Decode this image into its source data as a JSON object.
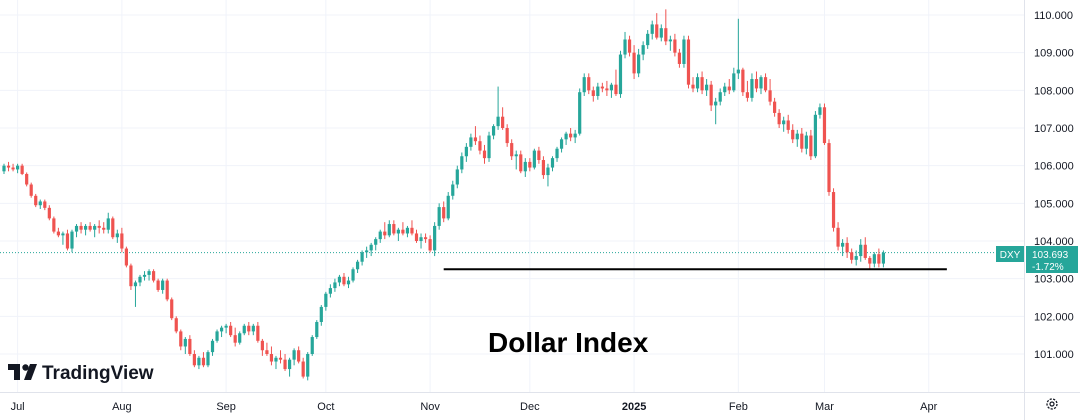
{
  "chart_data": {
    "type": "candlestick",
    "annotation": "Dollar Index",
    "watermark": "TradingView",
    "symbol": "DXY",
    "last_price": "103.693",
    "change_pct": "-1.72%",
    "ylim": [
      100.5,
      110.25
    ],
    "y_ticks": [
      "110.000",
      "109.000",
      "108.000",
      "107.000",
      "106.000",
      "105.000",
      "104.000",
      "103.000",
      "102.000",
      "101.000"
    ],
    "x_ticks": [
      {
        "label": "Jul",
        "index": 3,
        "bold": false
      },
      {
        "label": "Aug",
        "index": 26,
        "bold": false
      },
      {
        "label": "Sep",
        "index": 49,
        "bold": false
      },
      {
        "label": "Oct",
        "index": 71,
        "bold": false
      },
      {
        "label": "Nov",
        "index": 94,
        "bold": false
      },
      {
        "label": "Dec",
        "index": 116,
        "bold": false
      },
      {
        "label": "2025",
        "index": 139,
        "bold": true
      },
      {
        "label": "Feb",
        "index": 162,
        "bold": false
      },
      {
        "label": "Mar",
        "index": 181,
        "bold": false
      },
      {
        "label": "Apr",
        "index": 204,
        "bold": false
      }
    ],
    "support_level": {
      "value": 103.25,
      "from_index": 97,
      "to_index": 208
    },
    "colors": {
      "up": "#26a69a",
      "down": "#ef5350",
      "grid": "#f0f3fa",
      "support": "#000000",
      "tag": "#26a69a"
    },
    "candles": [
      [
        105.85,
        106.05,
        105.78,
        106.0
      ],
      [
        106.0,
        106.1,
        105.85,
        105.95
      ],
      [
        105.95,
        106.05,
        105.85,
        105.9
      ],
      [
        105.9,
        106.05,
        105.8,
        106.0
      ],
      [
        106.0,
        106.05,
        105.75,
        105.78
      ],
      [
        105.78,
        105.82,
        105.45,
        105.5
      ],
      [
        105.5,
        105.55,
        105.15,
        105.2
      ],
      [
        105.2,
        105.25,
        104.9,
        104.95
      ],
      [
        104.95,
        105.1,
        104.85,
        105.05
      ],
      [
        105.05,
        105.1,
        104.82,
        104.88
      ],
      [
        104.88,
        104.95,
        104.55,
        104.6
      ],
      [
        104.6,
        104.65,
        104.2,
        104.25
      ],
      [
        104.25,
        104.35,
        104.1,
        104.15
      ],
      [
        104.15,
        104.25,
        103.9,
        104.2
      ],
      [
        104.2,
        104.3,
        103.75,
        103.8
      ],
      [
        103.8,
        104.3,
        103.7,
        104.25
      ],
      [
        104.25,
        104.45,
        104.1,
        104.4
      ],
      [
        104.4,
        104.5,
        104.2,
        104.3
      ],
      [
        104.3,
        104.45,
        104.15,
        104.4
      ],
      [
        104.4,
        104.5,
        104.25,
        104.3
      ],
      [
        104.3,
        104.45,
        104.1,
        104.4
      ],
      [
        104.4,
        104.55,
        104.2,
        104.35
      ],
      [
        104.35,
        104.5,
        104.2,
        104.3
      ],
      [
        104.3,
        104.75,
        104.2,
        104.6
      ],
      [
        104.6,
        104.65,
        104.05,
        104.1
      ],
      [
        104.1,
        104.3,
        103.95,
        104.2
      ],
      [
        104.2,
        104.35,
        103.7,
        103.8
      ],
      [
        103.8,
        103.85,
        103.3,
        103.35
      ],
      [
        103.35,
        103.4,
        102.7,
        102.8
      ],
      [
        102.8,
        102.95,
        102.25,
        102.9
      ],
      [
        102.9,
        103.1,
        102.8,
        103.05
      ],
      [
        103.05,
        103.2,
        102.95,
        103.1
      ],
      [
        103.1,
        103.25,
        102.95,
        103.2
      ],
      [
        103.2,
        103.25,
        102.9,
        102.95
      ],
      [
        102.95,
        103.0,
        102.65,
        102.7
      ],
      [
        102.7,
        103.0,
        102.6,
        102.95
      ],
      [
        102.95,
        103.0,
        102.4,
        102.45
      ],
      [
        102.45,
        102.5,
        101.9,
        101.95
      ],
      [
        101.95,
        102.0,
        101.55,
        101.6
      ],
      [
        101.6,
        101.65,
        101.1,
        101.2
      ],
      [
        101.2,
        101.45,
        101.0,
        101.4
      ],
      [
        101.4,
        101.5,
        100.95,
        101.0
      ],
      [
        101.0,
        101.1,
        100.65,
        100.7
      ],
      [
        100.7,
        100.95,
        100.6,
        100.9
      ],
      [
        100.9,
        101.05,
        100.65,
        100.7
      ],
      [
        100.7,
        101.1,
        100.65,
        101.05
      ],
      [
        101.05,
        101.4,
        100.95,
        101.35
      ],
      [
        101.35,
        101.65,
        101.3,
        101.6
      ],
      [
        101.6,
        101.75,
        101.45,
        101.7
      ],
      [
        101.7,
        101.8,
        101.55,
        101.75
      ],
      [
        101.75,
        101.85,
        101.45,
        101.5
      ],
      [
        101.5,
        101.7,
        101.2,
        101.3
      ],
      [
        101.3,
        101.6,
        101.25,
        101.55
      ],
      [
        101.55,
        101.8,
        101.5,
        101.75
      ],
      [
        101.75,
        101.85,
        101.5,
        101.6
      ],
      [
        101.6,
        101.8,
        101.5,
        101.75
      ],
      [
        101.75,
        101.85,
        101.3,
        101.35
      ],
      [
        101.35,
        101.4,
        100.95,
        101.1
      ],
      [
        101.1,
        101.3,
        100.95,
        101.0
      ],
      [
        101.0,
        101.2,
        100.7,
        100.8
      ],
      [
        100.8,
        100.95,
        100.6,
        100.9
      ],
      [
        100.9,
        101.1,
        100.75,
        100.85
      ],
      [
        100.85,
        101.0,
        100.55,
        100.6
      ],
      [
        100.6,
        100.9,
        100.4,
        100.85
      ],
      [
        100.85,
        101.15,
        100.7,
        101.1
      ],
      [
        101.1,
        101.2,
        100.75,
        100.8
      ],
      [
        100.8,
        100.9,
        100.35,
        100.4
      ],
      [
        100.4,
        101.05,
        100.3,
        101.0
      ],
      [
        101.0,
        101.5,
        100.95,
        101.45
      ],
      [
        101.45,
        101.9,
        101.4,
        101.85
      ],
      [
        101.85,
        102.3,
        101.75,
        102.25
      ],
      [
        102.25,
        102.65,
        102.15,
        102.6
      ],
      [
        102.6,
        102.85,
        102.5,
        102.75
      ],
      [
        102.75,
        103.0,
        102.65,
        102.9
      ],
      [
        102.9,
        103.1,
        102.8,
        103.05
      ],
      [
        103.05,
        103.15,
        102.8,
        102.85
      ],
      [
        102.85,
        103.05,
        102.75,
        102.95
      ],
      [
        102.95,
        103.3,
        102.9,
        103.25
      ],
      [
        103.25,
        103.5,
        103.15,
        103.45
      ],
      [
        103.45,
        103.75,
        103.35,
        103.7
      ],
      [
        103.7,
        103.85,
        103.55,
        103.75
      ],
      [
        103.75,
        103.95,
        103.6,
        103.9
      ],
      [
        103.9,
        104.1,
        103.75,
        104.05
      ],
      [
        104.05,
        104.3,
        103.95,
        104.25
      ],
      [
        104.25,
        104.5,
        104.05,
        104.15
      ],
      [
        104.15,
        104.55,
        104.1,
        104.45
      ],
      [
        104.45,
        104.55,
        104.15,
        104.2
      ],
      [
        104.2,
        104.35,
        104.0,
        104.3
      ],
      [
        104.3,
        104.5,
        104.15,
        104.2
      ],
      [
        104.2,
        104.4,
        104.1,
        104.35
      ],
      [
        104.35,
        104.55,
        104.15,
        104.2
      ],
      [
        104.2,
        104.3,
        103.95,
        104.0
      ],
      [
        104.0,
        104.2,
        103.8,
        104.1
      ],
      [
        104.1,
        104.2,
        103.95,
        104.05
      ],
      [
        104.05,
        104.15,
        103.7,
        103.75
      ],
      [
        103.75,
        104.5,
        103.6,
        104.4
      ],
      [
        104.4,
        105.0,
        104.3,
        104.9
      ],
      [
        104.9,
        105.05,
        104.5,
        104.6
      ],
      [
        104.6,
        105.3,
        104.55,
        105.2
      ],
      [
        105.2,
        105.6,
        105.1,
        105.5
      ],
      [
        105.5,
        106.0,
        105.4,
        105.9
      ],
      [
        105.9,
        106.35,
        105.8,
        106.25
      ],
      [
        106.25,
        106.6,
        106.1,
        106.5
      ],
      [
        106.5,
        106.85,
        106.4,
        106.75
      ],
      [
        106.75,
        107.05,
        106.55,
        106.65
      ],
      [
        106.65,
        106.8,
        106.3,
        106.4
      ],
      [
        106.4,
        106.55,
        106.05,
        106.2
      ],
      [
        106.2,
        106.9,
        106.1,
        106.8
      ],
      [
        106.8,
        107.1,
        106.7,
        107.05
      ],
      [
        107.05,
        108.1,
        106.95,
        107.3
      ],
      [
        107.3,
        107.55,
        106.95,
        107.0
      ],
      [
        107.0,
        107.1,
        106.5,
        106.6
      ],
      [
        106.6,
        106.7,
        106.15,
        106.25
      ],
      [
        106.25,
        106.4,
        105.9,
        106.3
      ],
      [
        106.3,
        106.4,
        105.8,
        105.85
      ],
      [
        105.85,
        106.2,
        105.7,
        106.1
      ],
      [
        106.1,
        106.2,
        105.85,
        105.95
      ],
      [
        105.95,
        106.45,
        105.9,
        106.4
      ],
      [
        106.4,
        106.5,
        106.05,
        106.15
      ],
      [
        106.15,
        106.25,
        105.65,
        105.75
      ],
      [
        105.75,
        106.05,
        105.45,
        105.95
      ],
      [
        105.95,
        106.25,
        105.85,
        106.2
      ],
      [
        106.2,
        106.5,
        106.1,
        106.45
      ],
      [
        106.45,
        106.75,
        106.35,
        106.7
      ],
      [
        106.7,
        106.9,
        106.55,
        106.85
      ],
      [
        106.85,
        107.0,
        106.65,
        106.75
      ],
      [
        106.75,
        106.95,
        106.6,
        106.85
      ],
      [
        106.85,
        108.05,
        106.8,
        107.95
      ],
      [
        107.95,
        108.45,
        107.85,
        108.35
      ],
      [
        108.35,
        108.45,
        107.9,
        108.0
      ],
      [
        108.0,
        108.1,
        107.7,
        107.85
      ],
      [
        107.85,
        108.2,
        107.75,
        108.1
      ],
      [
        108.1,
        108.2,
        107.95,
        108.05
      ],
      [
        108.05,
        108.25,
        107.85,
        108.0
      ],
      [
        108.0,
        108.2,
        107.8,
        108.15
      ],
      [
        108.15,
        108.55,
        107.85,
        107.9
      ],
      [
        107.9,
        109.05,
        107.8,
        108.95
      ],
      [
        108.95,
        109.55,
        108.85,
        109.35
      ],
      [
        109.35,
        109.45,
        108.9,
        109.0
      ],
      [
        109.0,
        109.2,
        108.3,
        108.45
      ],
      [
        108.45,
        109.1,
        108.35,
        108.95
      ],
      [
        108.95,
        109.3,
        108.8,
        109.2
      ],
      [
        109.2,
        109.6,
        109.1,
        109.5
      ],
      [
        109.5,
        109.85,
        109.35,
        109.75
      ],
      [
        109.75,
        110.05,
        109.35,
        109.4
      ],
      [
        109.4,
        109.75,
        109.3,
        109.65
      ],
      [
        109.65,
        110.15,
        109.2,
        109.3
      ],
      [
        109.3,
        109.45,
        109.05,
        109.35
      ],
      [
        109.35,
        109.5,
        108.9,
        109.0
      ],
      [
        109.0,
        109.1,
        108.6,
        108.7
      ],
      [
        108.7,
        109.45,
        108.6,
        109.35
      ],
      [
        109.35,
        109.45,
        108.05,
        108.15
      ],
      [
        108.15,
        108.35,
        107.95,
        108.05
      ],
      [
        108.05,
        108.45,
        107.95,
        108.35
      ],
      [
        108.35,
        108.5,
        107.9,
        108.0
      ],
      [
        108.0,
        108.3,
        107.85,
        108.15
      ],
      [
        108.15,
        108.25,
        107.45,
        107.6
      ],
      [
        107.6,
        107.8,
        107.1,
        107.7
      ],
      [
        107.7,
        108.05,
        107.6,
        107.95
      ],
      [
        107.95,
        108.2,
        107.85,
        108.1
      ],
      [
        108.1,
        108.3,
        107.9,
        108.0
      ],
      [
        108.0,
        108.6,
        107.95,
        108.45
      ],
      [
        108.45,
        109.9,
        108.3,
        108.55
      ],
      [
        108.55,
        108.6,
        107.85,
        107.95
      ],
      [
        107.95,
        108.25,
        107.7,
        107.8
      ],
      [
        107.8,
        108.45,
        107.7,
        108.3
      ],
      [
        108.3,
        108.5,
        107.95,
        108.05
      ],
      [
        108.05,
        108.4,
        107.9,
        108.35
      ],
      [
        108.35,
        108.45,
        107.95,
        108.0
      ],
      [
        108.0,
        108.3,
        107.6,
        107.7
      ],
      [
        107.7,
        107.8,
        107.3,
        107.4
      ],
      [
        107.4,
        107.5,
        107.0,
        107.1
      ],
      [
        107.1,
        107.3,
        106.9,
        107.2
      ],
      [
        107.2,
        107.35,
        106.85,
        106.95
      ],
      [
        106.95,
        107.1,
        106.6,
        106.7
      ],
      [
        106.7,
        106.95,
        106.5,
        106.85
      ],
      [
        106.85,
        107.0,
        106.35,
        106.45
      ],
      [
        106.45,
        106.9,
        106.3,
        106.8
      ],
      [
        106.8,
        106.95,
        106.15,
        106.25
      ],
      [
        106.25,
        107.45,
        106.2,
        107.35
      ],
      [
        107.35,
        107.65,
        107.25,
        107.55
      ],
      [
        107.55,
        107.65,
        106.55,
        106.6
      ],
      [
        106.6,
        106.7,
        105.2,
        105.3
      ],
      [
        105.3,
        105.4,
        104.25,
        104.35
      ],
      [
        104.35,
        104.5,
        103.75,
        103.85
      ],
      [
        103.85,
        104.05,
        103.6,
        103.95
      ],
      [
        103.95,
        104.1,
        103.55,
        103.7
      ],
      [
        103.7,
        103.8,
        103.4,
        103.5
      ],
      [
        103.5,
        103.75,
        103.35,
        103.6
      ],
      [
        103.6,
        104.05,
        103.45,
        103.9
      ],
      [
        103.9,
        104.1,
        103.5,
        103.55
      ],
      [
        103.55,
        103.6,
        103.25,
        103.4
      ],
      [
        103.4,
        103.7,
        103.3,
        103.65
      ],
      [
        103.65,
        103.8,
        103.3,
        103.4
      ],
      [
        103.4,
        103.75,
        103.3,
        103.69
      ]
    ]
  }
}
